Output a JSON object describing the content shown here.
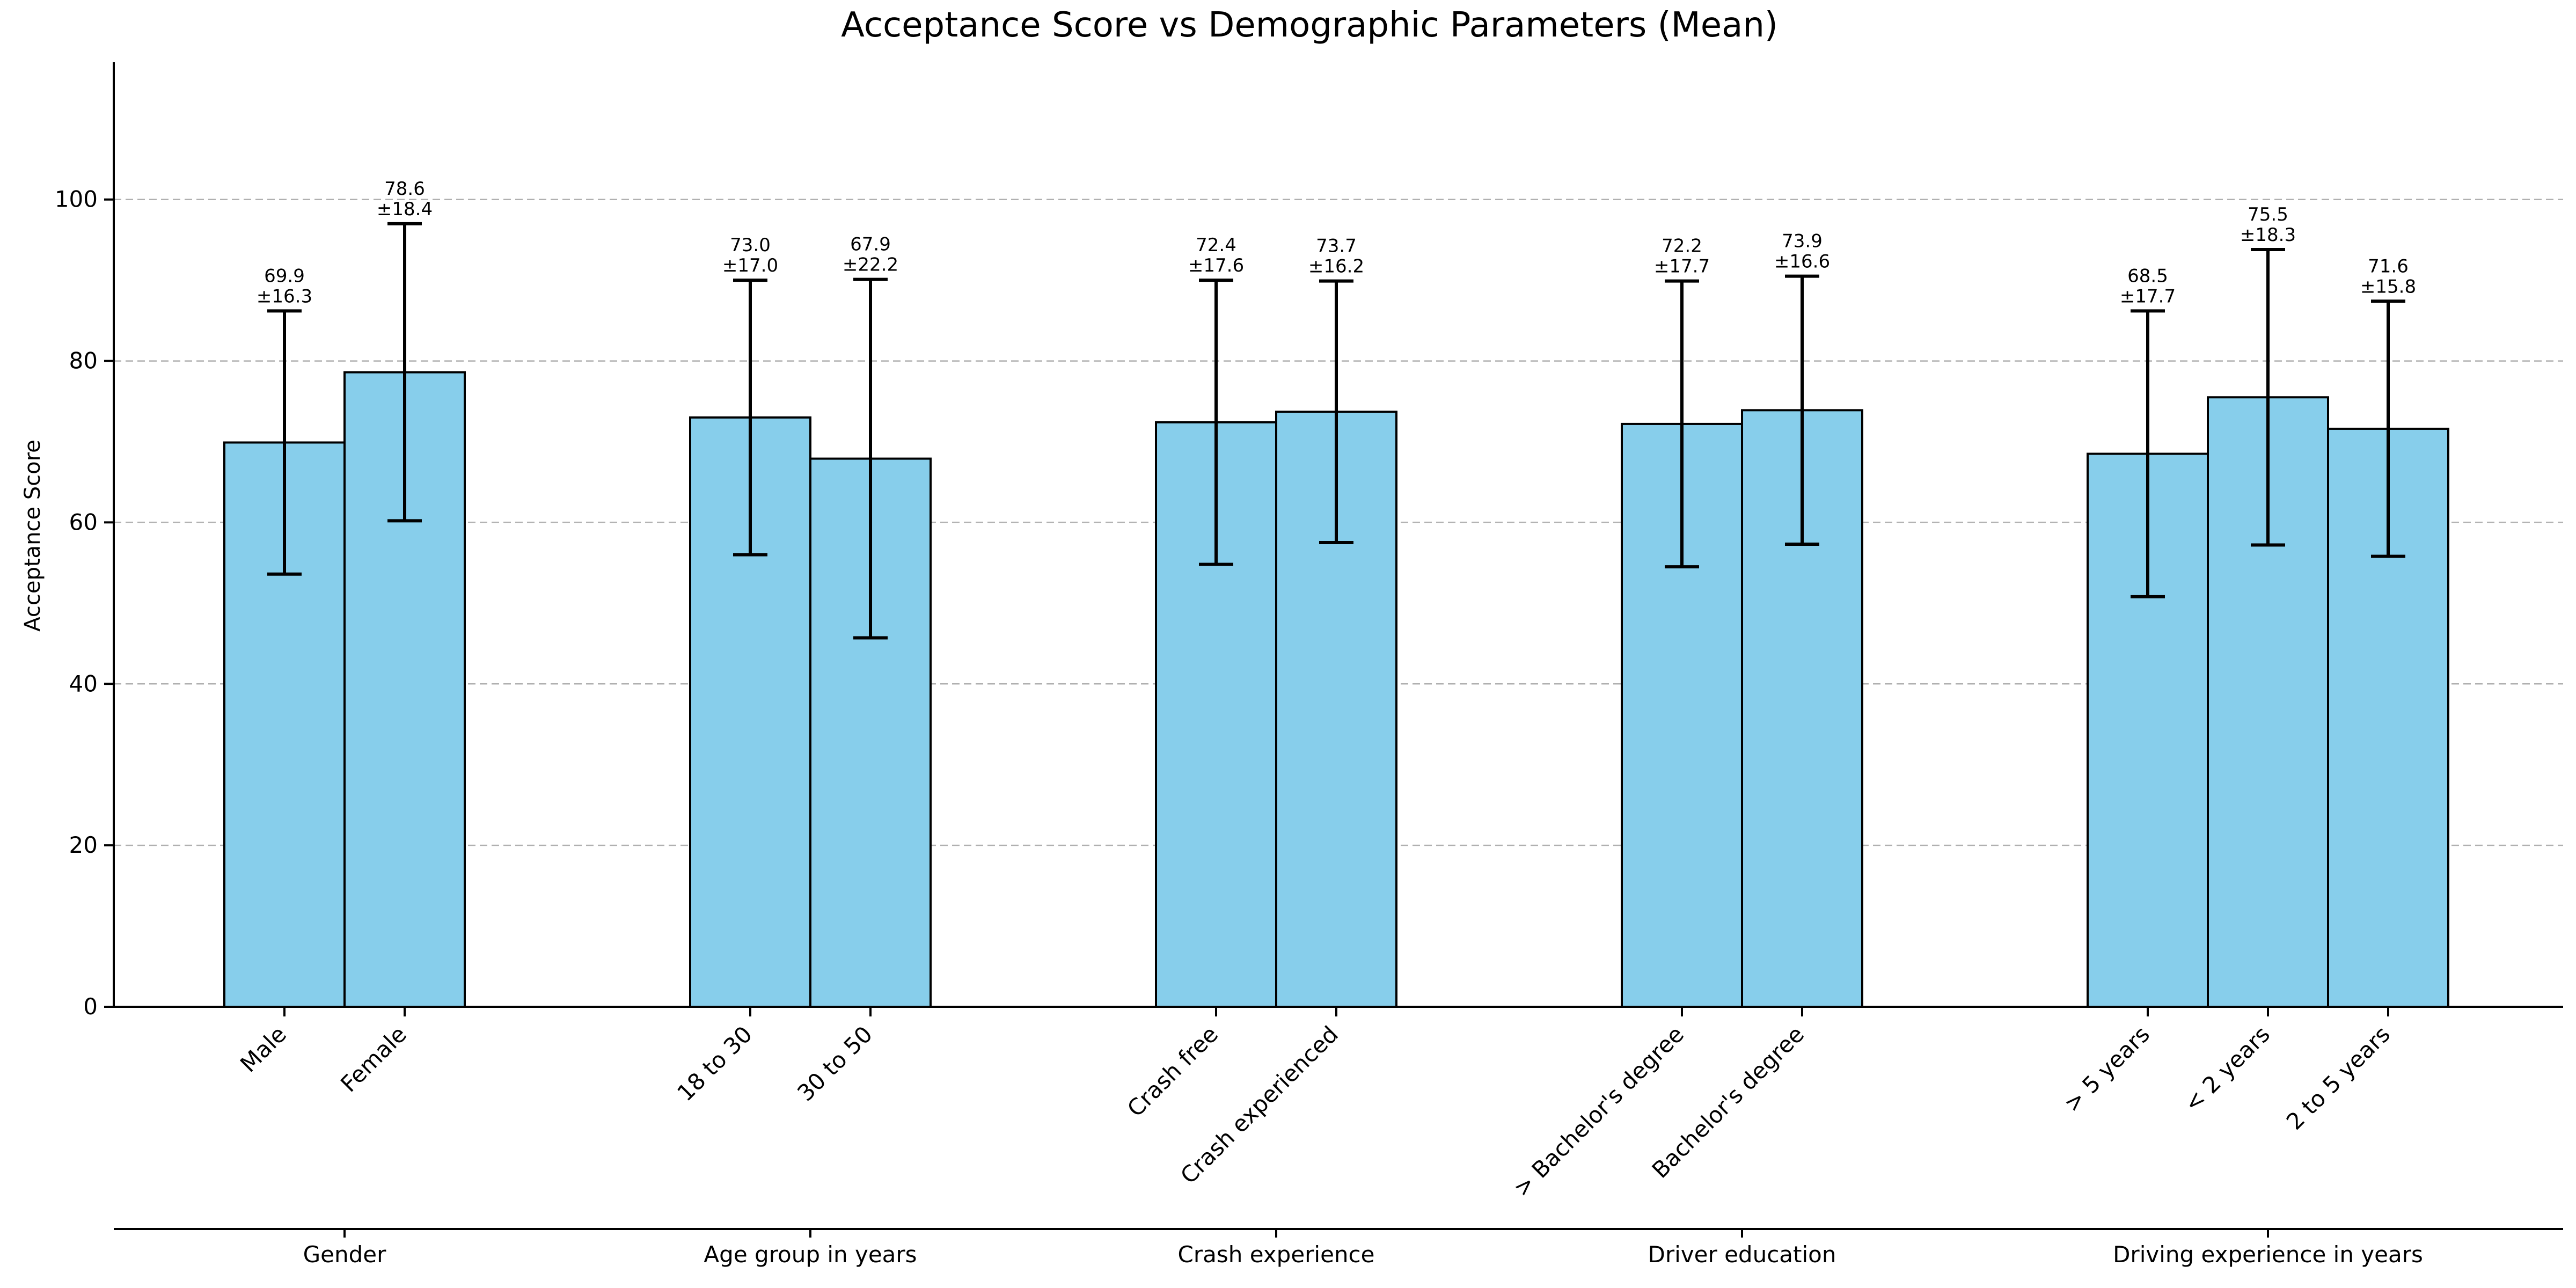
{
  "chart_data": {
    "type": "bar",
    "title": "Acceptance Score vs Demographic Parameters (Mean)",
    "xlabel": "",
    "ylabel": "Acceptance Score",
    "ylim": [
      0,
      117
    ],
    "yticks": [
      0,
      20,
      40,
      60,
      80,
      100
    ],
    "grid": "y-dashed",
    "bar_color": "#87CEEB",
    "groups": [
      {
        "name": "Gender",
        "categories": [
          "Male",
          "Female"
        ],
        "values": [
          69.9,
          78.6
        ],
        "errors": [
          16.3,
          18.4
        ],
        "labels": [
          [
            "69.9",
            "±16.3"
          ],
          [
            "78.6",
            "±18.4"
          ]
        ]
      },
      {
        "name": "Age group in years",
        "categories": [
          "18 to 30",
          "30 to 50"
        ],
        "values": [
          73.0,
          67.9
        ],
        "errors": [
          17.0,
          22.2
        ],
        "labels": [
          [
            "73.0",
            "±17.0"
          ],
          [
            "67.9",
            "±22.2"
          ]
        ]
      },
      {
        "name": "Crash experience",
        "categories": [
          "Crash free",
          "Crash experienced"
        ],
        "values": [
          72.4,
          73.7
        ],
        "errors": [
          17.6,
          16.2
        ],
        "labels": [
          [
            "72.4",
            "±17.6"
          ],
          [
            "73.7",
            "±16.2"
          ]
        ]
      },
      {
        "name": "Driver education",
        "categories": [
          "> Bachelor's degree",
          "Bachelor's degree"
        ],
        "values": [
          72.2,
          73.9
        ],
        "errors": [
          17.7,
          16.6
        ],
        "labels": [
          [
            "72.2",
            "±17.7"
          ],
          [
            "73.9",
            "±16.6"
          ]
        ]
      },
      {
        "name": "Driving experience in years",
        "categories": [
          "> 5 years",
          "< 2 years",
          "2 to 5 years"
        ],
        "values": [
          68.5,
          75.5,
          71.6
        ],
        "errors": [
          17.7,
          18.3,
          15.8
        ],
        "labels": [
          [
            "68.5",
            "±17.7"
          ],
          [
            "75.5",
            "±18.3"
          ],
          [
            "71.6",
            "±15.8"
          ]
        ]
      }
    ]
  }
}
